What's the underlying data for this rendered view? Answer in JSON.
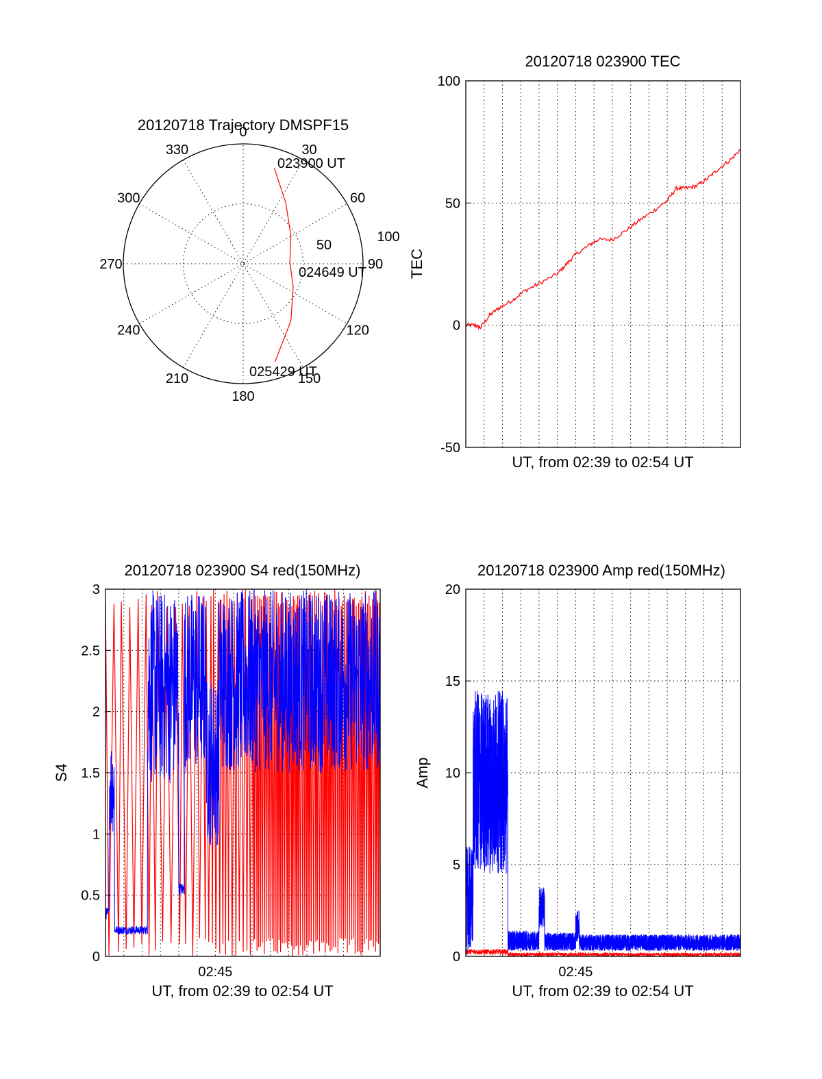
{
  "chart_data": [
    {
      "id": "trajectory",
      "type": "line",
      "projection": "polar",
      "title": "20120718 Trajectory DMSPF15",
      "azimuth_labels": [
        "0",
        "30",
        "60",
        "90",
        "120",
        "150",
        "180",
        "210",
        "240",
        "270",
        "300",
        "330"
      ],
      "elevation_labels": [
        "50",
        "100"
      ],
      "radius_max": 100,
      "grid": true,
      "series": [
        {
          "color": "#ff0000",
          "points": [
            {
              "az": 18,
              "r": 84
            },
            {
              "az": 35,
              "r": 62
            },
            {
              "az": 60,
              "r": 46
            },
            {
              "az": 88,
              "r": 39
            },
            {
              "az": 115,
              "r": 46
            },
            {
              "az": 140,
              "r": 62
            },
            {
              "az": 162,
              "r": 86
            }
          ]
        }
      ],
      "annotations": [
        "023900 UT",
        "024649 UT",
        "025429 UT"
      ]
    },
    {
      "id": "tec",
      "type": "line",
      "title": "20120718 023900 TEC",
      "xlabel": "UT, from 02:39 to 02:54 UT",
      "ylabel": "TEC",
      "xlim": [
        0,
        15
      ],
      "ylim": [
        -50,
        100
      ],
      "yticks": [
        "-50",
        "0",
        "50",
        "100"
      ],
      "grid": true,
      "series": [
        {
          "color": "#ff0000",
          "points": [
            [
              0,
              0
            ],
            [
              0.5,
              0
            ],
            [
              0.8,
              -1
            ],
            [
              1.3,
              4
            ],
            [
              1.8,
              7
            ],
            [
              2.5,
              10
            ],
            [
              3.2,
              14
            ],
            [
              4.0,
              17
            ],
            [
              5.0,
              21
            ],
            [
              5.5,
              25
            ],
            [
              6.0,
              29
            ],
            [
              6.8,
              33
            ],
            [
              7.2,
              35
            ],
            [
              8.0,
              35
            ],
            [
              8.8,
              39
            ],
            [
              9.5,
              43
            ],
            [
              10.3,
              47
            ],
            [
              11.0,
              51
            ],
            [
              11.5,
              56
            ],
            [
              12.0,
              56
            ],
            [
              12.6,
              57
            ],
            [
              13.2,
              60
            ],
            [
              13.8,
              64
            ],
            [
              14.5,
              68
            ],
            [
              15.0,
              72
            ]
          ]
        }
      ]
    },
    {
      "id": "s4",
      "type": "line",
      "title": "20120718 023900 S4 red(150MHz)",
      "xlabel": "UT, from 02:39 to 02:54 UT",
      "ylabel": "S4",
      "xlim": [
        0,
        15
      ],
      "ylim": [
        0,
        3
      ],
      "xticks": [
        {
          "value": 6,
          "label": "02:45"
        }
      ],
      "yticks": [
        "0",
        "0.5",
        "1",
        "1.5",
        "2",
        "2.5",
        "3"
      ],
      "grid": true,
      "series": [
        {
          "color": "#ff0000",
          "style": "dense-oscillation",
          "segments": [
            {
              "x0": 0,
              "x1": 5.5,
              "low": 0,
              "high": 3,
              "density": 1.5
            },
            {
              "x0": 5.5,
              "x1": 8,
              "low": 0,
              "high": 3,
              "density": 3
            },
            {
              "x0": 8,
              "x1": 15,
              "low": 0,
              "high": 3,
              "density": 6
            }
          ]
        },
        {
          "color": "#0000ff",
          "style": "noisy",
          "segments": [
            {
              "x0": 0,
              "x1": 0.2,
              "low": 0.3,
              "high": 0.4
            },
            {
              "x0": 0.2,
              "x1": 0.5,
              "low": 1.0,
              "high": 1.8
            },
            {
              "x0": 0.5,
              "x1": 2.3,
              "low": 0.18,
              "high": 0.25
            },
            {
              "x0": 2.3,
              "x1": 4.0,
              "low": 1.4,
              "high": 3.0
            },
            {
              "x0": 4.0,
              "x1": 4.3,
              "low": 0.5,
              "high": 0.6
            },
            {
              "x0": 4.3,
              "x1": 5.5,
              "low": 1.5,
              "high": 3.0
            },
            {
              "x0": 5.5,
              "x1": 6.2,
              "low": 0.9,
              "high": 2.3
            },
            {
              "x0": 6.2,
              "x1": 15,
              "low": 1.5,
              "high": 3.0
            }
          ]
        }
      ]
    },
    {
      "id": "amp",
      "type": "line",
      "title": "20120718 023900 Amp red(150MHz)",
      "xlabel": "UT, from 02:39 to 02:54 UT",
      "ylabel": "Amp",
      "xlim": [
        0,
        15
      ],
      "ylim": [
        0,
        20
      ],
      "xticks": [
        {
          "value": 6,
          "label": "02:45"
        }
      ],
      "yticks": [
        "0",
        "5",
        "10",
        "15",
        "20"
      ],
      "grid": true,
      "series": [
        {
          "color": "#ff0000",
          "style": "noisy",
          "segments": [
            {
              "x0": 0,
              "x1": 2.3,
              "low": 0.1,
              "high": 0.4
            },
            {
              "x0": 2.3,
              "x1": 15,
              "low": 0.0,
              "high": 0.2
            }
          ]
        },
        {
          "color": "#0000ff",
          "style": "noisy",
          "segments": [
            {
              "x0": 0,
              "x1": 0.4,
              "low": 0.2,
              "high": 6.0
            },
            {
              "x0": 0.4,
              "x1": 2.3,
              "low": 4.5,
              "high": 14.5
            },
            {
              "x0": 2.3,
              "x1": 4.0,
              "low": 0.3,
              "high": 1.4
            },
            {
              "x0": 4.0,
              "x1": 4.3,
              "low": 1.5,
              "high": 3.8
            },
            {
              "x0": 4.3,
              "x1": 6.0,
              "low": 0.3,
              "high": 1.3
            },
            {
              "x0": 6.0,
              "x1": 6.2,
              "low": 0.8,
              "high": 2.5
            },
            {
              "x0": 6.2,
              "x1": 15,
              "low": 0.3,
              "high": 1.2
            }
          ]
        }
      ]
    }
  ]
}
